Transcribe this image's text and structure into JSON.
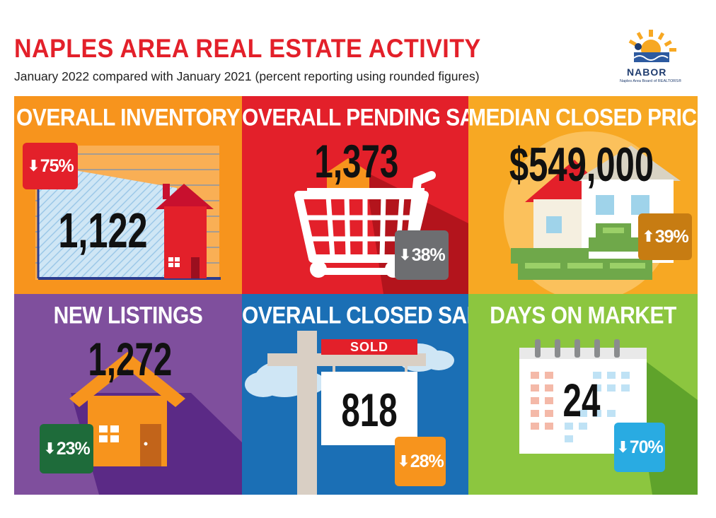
{
  "header": {
    "title": "NAPLES AREA REAL ESTATE ACTIVITY",
    "subtitle": "January 2022 compared with January 2021 (percent reporting using rounded figures)"
  },
  "logo": {
    "name": "NABOR",
    "tagline": "Naples Area Board of REALTORS®"
  },
  "tiles": {
    "inventory": {
      "title": "OVERALL INVENTORY",
      "value": "1,122",
      "change": "75%",
      "direction": "down",
      "color": "#f7941d",
      "badge_color": "#e3202a",
      "icon": "house-chart-icon"
    },
    "pending": {
      "title": "OVERALL PENDING SALES",
      "value": "1,373",
      "change": "38%",
      "direction": "down",
      "color": "#e3202a",
      "badge_color": "#6d6e71",
      "icon": "shopping-cart-icon"
    },
    "price": {
      "title": "MEDIAN CLOSED PRICE",
      "value": "$549,000",
      "change": "39%",
      "direction": "up",
      "color": "#f7a823",
      "badge_color": "#c77c12",
      "icon": "house-money-icon"
    },
    "listings": {
      "title": "NEW LISTINGS",
      "value": "1,272",
      "change": "23%",
      "direction": "down",
      "color": "#7f4f9d",
      "badge_color": "#1e6b3a",
      "icon": "house-icon"
    },
    "closed": {
      "title": "OVERALL CLOSED SALES",
      "value": "818",
      "change": "28%",
      "direction": "down",
      "color": "#1b6fb5",
      "badge_color": "#f7941d",
      "sign_label": "SOLD",
      "icon": "sold-sign-icon"
    },
    "days": {
      "title": "DAYS ON MARKET",
      "value": "24",
      "change": "70%",
      "direction": "down",
      "color": "#8cc63f",
      "badge_color": "#29abe2",
      "icon": "calendar-icon"
    }
  }
}
